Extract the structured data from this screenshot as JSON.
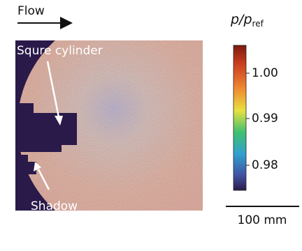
{
  "header": {
    "flow": "Flow"
  },
  "annotations": {
    "cylinder": "Squre cylinder",
    "shadow": "Shadow"
  },
  "colorbar": {
    "label_main": "p/p",
    "label_sub": "ref",
    "ticks": [
      "1.00",
      "0.99",
      "0.98"
    ]
  },
  "scale_bar": "100 mm"
}
